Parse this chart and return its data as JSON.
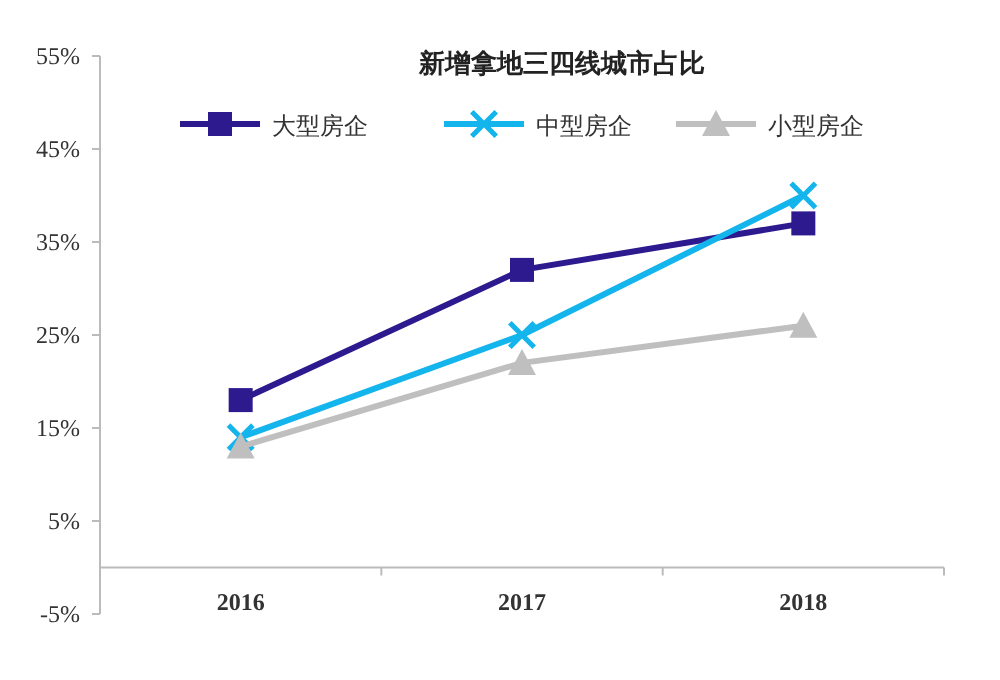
{
  "chart_data": {
    "type": "line",
    "title": "新增拿地三四线城市占比",
    "categories": [
      "2016",
      "2017",
      "2018"
    ],
    "series": [
      {
        "name": "大型房企",
        "color": "#2c1a8e",
        "values": [
          18,
          32,
          37
        ],
        "marker": "square"
      },
      {
        "name": "中型房企",
        "color": "#14b4ec",
        "values": [
          14,
          25,
          40
        ],
        "marker": "cross"
      },
      {
        "name": "小型房企",
        "color": "#bfbfbf",
        "values": [
          13,
          22,
          26
        ],
        "marker": "triangle"
      }
    ],
    "ylim": [
      -5,
      55
    ],
    "yticks": [
      {
        "value": -5,
        "label": "-5%"
      },
      {
        "value": 5,
        "label": "5%"
      },
      {
        "value": 15,
        "label": "15%"
      },
      {
        "value": 25,
        "label": "25%"
      },
      {
        "value": 35,
        "label": "35%"
      },
      {
        "value": 45,
        "label": "45%"
      },
      {
        "value": 55,
        "label": "55%"
      }
    ],
    "grid": false,
    "legend": "top",
    "line_style": "solid"
  }
}
